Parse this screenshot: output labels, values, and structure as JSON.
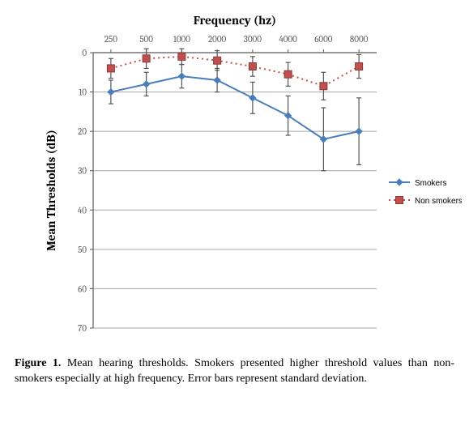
{
  "chart": {
    "type": "line-errorbar",
    "title": "Frequency (hz)",
    "title_fontsize": 15,
    "title_weight": "bold",
    "title_fontfamily": "Cambria, 'Times New Roman', serif",
    "ylabel": "Mean Thresholds (dB)",
    "ylabel_fontsize": 15,
    "ylabel_weight": "bold",
    "x_categories": [
      "250",
      "500",
      "1000",
      "2000",
      "3000",
      "4000",
      "6000",
      "8000"
    ],
    "ylim_top": 0,
    "ylim_bottom": 70,
    "ytick_step": 10,
    "grid_color": "#a6a6a6",
    "grid_width": 1,
    "axis_color": "#595959",
    "axis_width": 1.2,
    "background_color": "#ffffff",
    "legend": {
      "position": "right",
      "fontsize": 10,
      "items": [
        "Smokers",
        "Non smokers"
      ]
    },
    "series": [
      {
        "name": "Smokers",
        "color": "#4a7ebb",
        "marker": "diamond",
        "marker_size": 8,
        "line_dash": "none",
        "line_width": 2,
        "errorbar_color": "#555555",
        "errorbar_cap": 6,
        "y": [
          10.0,
          8.0,
          6.0,
          7.0,
          11.5,
          16.0,
          22.0,
          20.0
        ],
        "yerr": [
          3.0,
          3.0,
          3.0,
          3.0,
          4.0,
          5.0,
          8.0,
          8.5
        ]
      },
      {
        "name": "Non smokers",
        "color": "#c0504d",
        "marker": "square",
        "marker_size": 9,
        "line_dash": "dot",
        "line_width": 2,
        "errorbar_color": "#555555",
        "errorbar_cap": 6,
        "y": [
          4.0,
          1.5,
          1.0,
          2.0,
          3.5,
          5.5,
          8.5,
          3.5
        ],
        "yerr": [
          2.5,
          2.5,
          2.0,
          2.5,
          2.5,
          3.0,
          3.5,
          3.0
        ]
      }
    ]
  },
  "caption": {
    "label": "Figure 1.",
    "text": "Mean hearing thresholds. Smokers presented higher threshold values than non-smokers especially at high frequency. Error bars represent standard deviation."
  }
}
